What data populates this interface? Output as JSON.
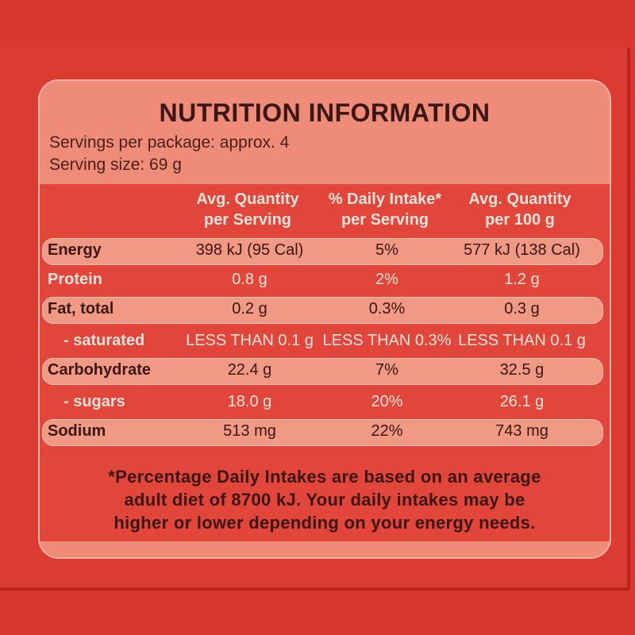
{
  "header": {
    "title": "NUTRITION INFORMATION",
    "servings_per_package": "Servings per package: approx. 4",
    "serving_size": "Serving size: 69 g"
  },
  "table": {
    "columns": [
      [
        "Avg. Quantity",
        "per Serving"
      ],
      [
        "% Daily Intake*",
        "per Serving"
      ],
      [
        "Avg. Quantity",
        "per 100 g"
      ]
    ],
    "rows": [
      [
        "Energy",
        "398 kJ (95 Cal)",
        "5%",
        "577 kJ (138 Cal)"
      ],
      [
        "Protein",
        "0.8 g",
        "2%",
        "1.2 g"
      ],
      [
        "Fat, total",
        "0.2 g",
        "0.3%",
        "0.3 g"
      ],
      [
        "- saturated",
        "LESS THAN 0.1 g",
        "LESS THAN 0.3%",
        "LESS THAN 0.1 g"
      ],
      [
        "Carbohydrate",
        "22.4 g",
        "7%",
        "32.5 g"
      ],
      [
        "- sugars",
        "18.0 g",
        "20%",
        "26.1 g"
      ],
      [
        "Sodium",
        "513 mg",
        "22%",
        "743 mg"
      ]
    ]
  },
  "footnote": [
    "*Percentage Daily Intakes are based on an average",
    "adult diet of 8700 kJ. Your daily intakes may be",
    "higher or lower depending on your energy needs."
  ]
}
